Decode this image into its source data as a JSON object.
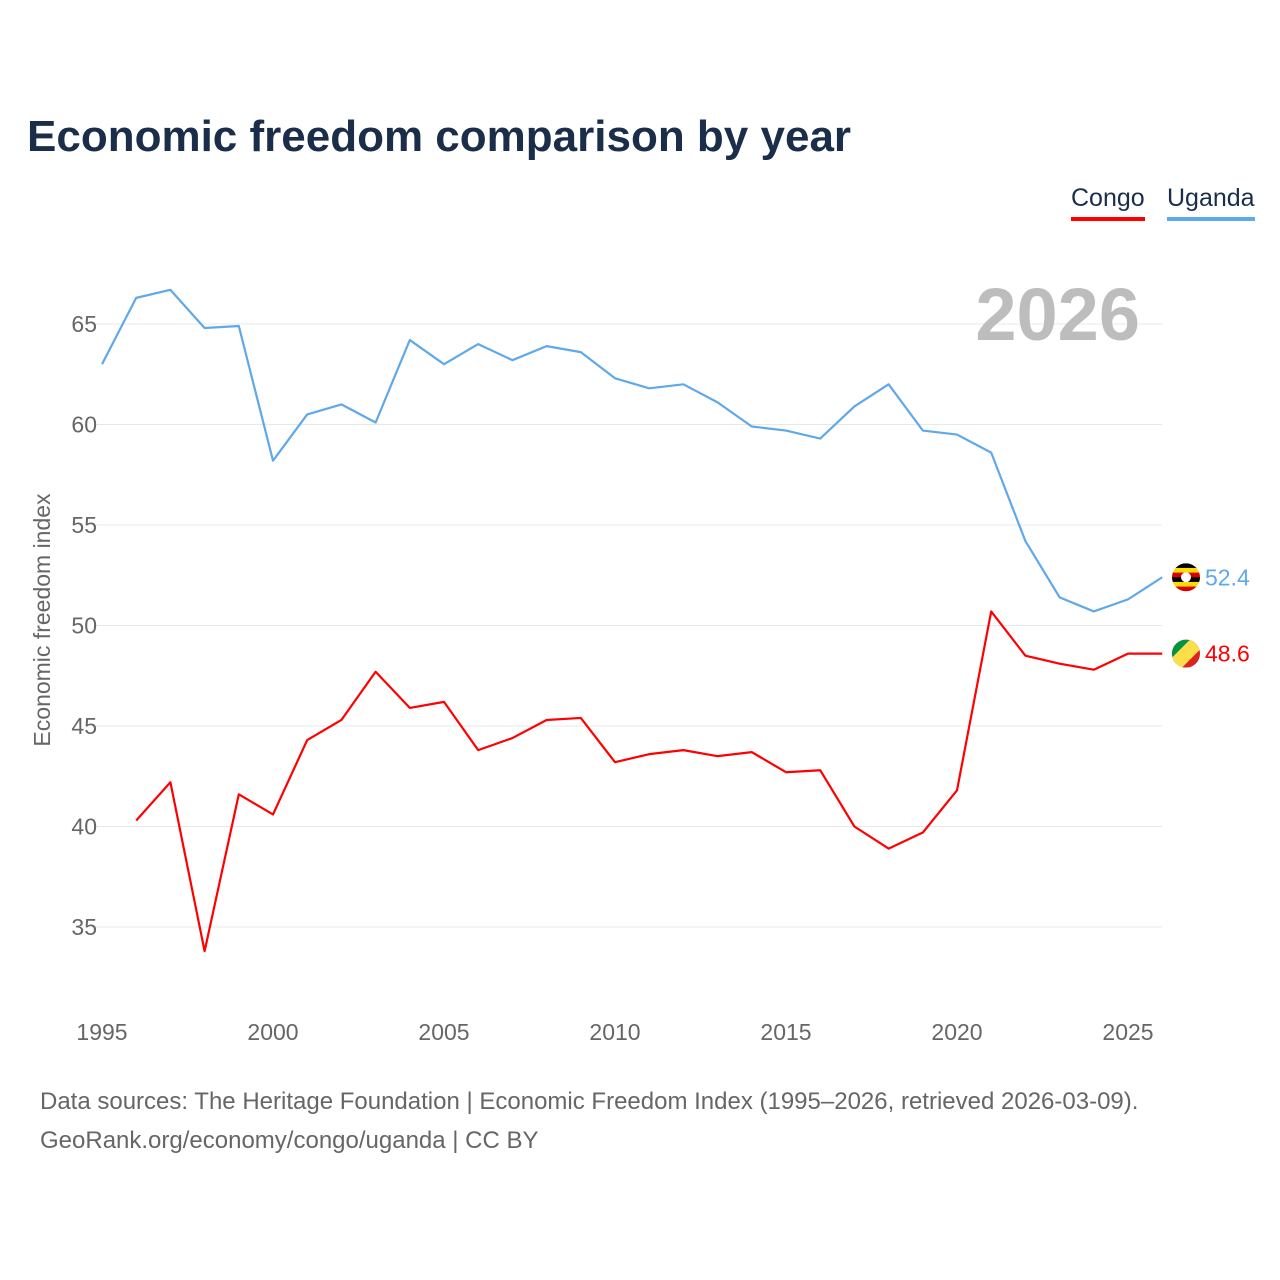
{
  "chart_data": {
    "type": "line",
    "title": "Economic freedom comparison by year",
    "xlabel": "",
    "ylabel": "Economic freedom index",
    "xlim": [
      1995,
      2026
    ],
    "ylim": [
      31,
      69
    ],
    "x_ticks": [
      1995,
      2000,
      2005,
      2010,
      2015,
      2020,
      2025
    ],
    "y_ticks": [
      35,
      40,
      45,
      50,
      55,
      60,
      65
    ],
    "grid": true,
    "legend_position": "top-right",
    "year_watermark": "2026",
    "series": [
      {
        "name": "Congo",
        "color": "#ff0000",
        "end_label": "48.6",
        "x": [
          1996,
          1997,
          1998,
          1999,
          2000,
          2001,
          2002,
          2003,
          2004,
          2005,
          2006,
          2007,
          2008,
          2009,
          2010,
          2011,
          2012,
          2013,
          2014,
          2015,
          2016,
          2017,
          2018,
          2019,
          2020,
          2021,
          2022,
          2023,
          2024,
          2025,
          2026
        ],
        "values": [
          40.3,
          42.2,
          33.8,
          41.6,
          40.6,
          44.3,
          45.3,
          47.7,
          45.9,
          46.2,
          43.8,
          44.4,
          45.3,
          45.4,
          43.2,
          43.6,
          43.8,
          43.5,
          43.7,
          42.7,
          42.8,
          40.0,
          38.9,
          39.7,
          41.8,
          50.7,
          48.5,
          48.1,
          47.8,
          48.6,
          48.6
        ]
      },
      {
        "name": "Uganda",
        "color": "#5fa8ea",
        "end_label": "52.4",
        "x": [
          1995,
          1996,
          1997,
          1998,
          1999,
          2000,
          2001,
          2002,
          2003,
          2004,
          2005,
          2006,
          2007,
          2008,
          2009,
          2010,
          2011,
          2012,
          2013,
          2014,
          2015,
          2016,
          2017,
          2018,
          2019,
          2020,
          2021,
          2022,
          2023,
          2024,
          2025,
          2026
        ],
        "values": [
          63.0,
          66.3,
          66.7,
          64.8,
          64.9,
          58.2,
          60.5,
          61.0,
          60.1,
          64.2,
          63.0,
          64.0,
          63.2,
          63.9,
          63.6,
          62.3,
          61.8,
          62.0,
          61.1,
          59.9,
          59.7,
          59.3,
          60.9,
          62.0,
          59.7,
          59.5,
          58.6,
          54.2,
          51.4,
          50.7,
          51.3,
          52.4
        ]
      }
    ]
  },
  "source_line1": "Data sources: The Heritage Foundation | Economic Freedom Index (1995–2026, retrieved 2026-03-09).",
  "source_line2": "GeoRank.org/economy/congo/uganda | CC BY"
}
